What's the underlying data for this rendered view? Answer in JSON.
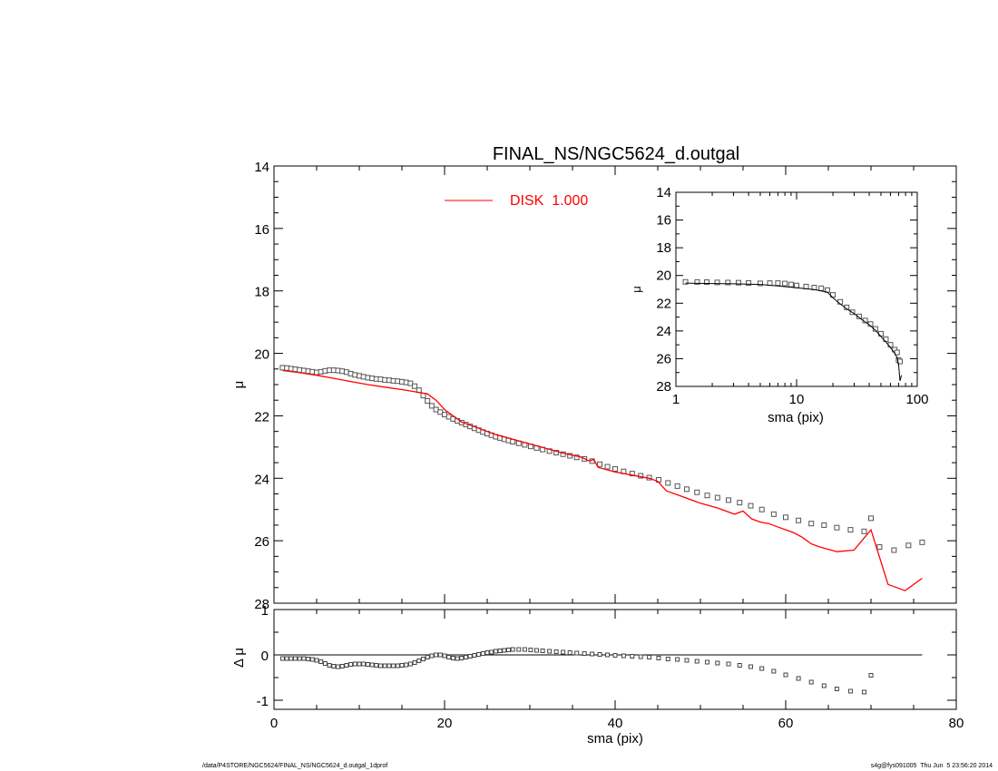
{
  "figure": {
    "title": "FINAL_NS/NGC5624_d.outgal",
    "footer_left": "/data/P4STORE/NGC5624/FINAL_NS/NGC5624_d.outgal_1dprof",
    "footer_right": "s4g@fys091005  Thu Jun  5 23:56:20 2014"
  },
  "chart_data": [
    {
      "panel": "main",
      "type": "scatter",
      "title": "FINAL_NS/NGC5624_d.outgal",
      "xlabel": "",
      "ylabel": "μ",
      "xlim": [
        0,
        80
      ],
      "ylim": [
        28,
        14
      ],
      "y_inverted": true,
      "xticks": [
        0,
        20,
        40,
        60,
        80
      ],
      "yticks": [
        14,
        16,
        18,
        20,
        22,
        24,
        26,
        28
      ],
      "legend": {
        "placement": "top-center",
        "entries": [
          {
            "label": "DISK  1.000",
            "color": "#ff0000"
          }
        ]
      },
      "series": [
        {
          "name": "",
          "kind": "points",
          "marker": "open-square",
          "color": "#000000",
          "x": [
            1.0,
            1.5,
            2.0,
            2.5,
            3.0,
            3.5,
            4.0,
            4.5,
            5.0,
            5.5,
            6.0,
            6.5,
            7.0,
            7.5,
            8.0,
            8.5,
            9.0,
            9.5,
            10.0,
            10.5,
            11.0,
            11.5,
            12.0,
            12.5,
            13.0,
            13.5,
            14.0,
            14.5,
            15.0,
            15.5,
            16.0,
            16.5,
            17.0,
            17.5,
            18.0,
            18.5,
            19.0,
            19.5,
            20.0,
            20.5,
            21.0,
            21.5,
            22.0,
            22.5,
            23.0,
            23.5,
            24.0,
            24.5,
            25.0,
            25.5,
            26.0,
            26.5,
            27.0,
            27.5,
            28.0,
            28.7,
            29.4,
            30.1,
            30.8,
            31.5,
            32.3,
            33.1,
            33.9,
            34.7,
            35.5,
            36.4,
            37.3,
            38.2,
            39.1,
            40.0,
            41.0,
            42.0,
            43.0,
            44.0,
            45.1,
            46.2,
            47.3,
            48.4,
            49.6,
            50.8,
            52.0,
            53.3,
            54.6,
            55.9,
            57.2,
            58.6,
            60.0,
            61.5,
            63.0,
            64.5,
            66.0,
            67.6,
            69.2,
            70.0,
            71.0,
            72.7,
            74.4,
            76.0
          ],
          "y": [
            20.46,
            20.47,
            20.49,
            20.51,
            20.53,
            20.55,
            20.57,
            20.59,
            20.61,
            20.59,
            20.56,
            20.54,
            20.54,
            20.55,
            20.57,
            20.6,
            20.65,
            20.69,
            20.72,
            20.75,
            20.78,
            20.8,
            20.82,
            20.83,
            20.85,
            20.86,
            20.88,
            20.89,
            20.91,
            20.93,
            20.96,
            21.05,
            21.18,
            21.35,
            21.52,
            21.68,
            21.8,
            21.88,
            21.96,
            22.03,
            22.1,
            22.16,
            22.22,
            22.28,
            22.34,
            22.4,
            22.46,
            22.52,
            22.57,
            22.62,
            22.67,
            22.71,
            22.75,
            22.79,
            22.83,
            22.88,
            22.93,
            22.98,
            23.03,
            23.08,
            23.13,
            23.18,
            23.23,
            23.28,
            23.33,
            23.38,
            23.45,
            23.55,
            23.63,
            23.7,
            23.78,
            23.85,
            23.92,
            23.98,
            24.05,
            24.15,
            24.25,
            24.35,
            24.45,
            24.55,
            24.62,
            24.7,
            24.78,
            24.88,
            25.0,
            25.15,
            25.25,
            25.35,
            25.45,
            25.5,
            25.58,
            25.65,
            25.7,
            25.28,
            26.2,
            26.3,
            26.15,
            26.05
          ]
        },
        {
          "name": "DISK  1.000",
          "kind": "line",
          "color": "#ff0000",
          "x": [
            1.0,
            3.0,
            5.0,
            7.0,
            9.0,
            11.0,
            13.0,
            15.0,
            17.0,
            18.0,
            19.0,
            20.0,
            21.0,
            22.0,
            24.0,
            26.0,
            28.0,
            30.0,
            32.0,
            34.0,
            36.0,
            37.0,
            37.5,
            38.0,
            40.0,
            42.0,
            44.0,
            45.0,
            46.0,
            48.0,
            50.0,
            52.0,
            54.0,
            55.0,
            56.0,
            57.0,
            58.0,
            59.0,
            60.0,
            61.0,
            62.0,
            63.0,
            64.0,
            66.0,
            68.0,
            70.0,
            72.0,
            74.0,
            76.0
          ],
          "y": [
            20.55,
            20.62,
            20.7,
            20.8,
            20.9,
            21.0,
            21.08,
            21.16,
            21.25,
            21.3,
            21.5,
            21.8,
            22.0,
            22.2,
            22.4,
            22.6,
            22.75,
            22.9,
            23.05,
            23.2,
            23.32,
            23.45,
            23.4,
            23.65,
            23.8,
            23.9,
            24.0,
            24.1,
            24.4,
            24.6,
            24.8,
            24.95,
            25.15,
            25.05,
            25.3,
            25.4,
            25.45,
            25.55,
            25.65,
            25.75,
            25.9,
            26.1,
            26.2,
            26.35,
            26.3,
            25.65,
            27.4,
            27.6,
            27.2
          ]
        }
      ]
    },
    {
      "panel": "residual",
      "type": "scatter",
      "xlabel": "sma (pix)",
      "ylabel": "Δ μ",
      "xlim": [
        0,
        80
      ],
      "ylim": [
        -1.2,
        1.0
      ],
      "xticks": [
        0,
        20,
        40,
        60,
        80
      ],
      "yticks": [
        -1,
        0,
        1
      ],
      "reference_line": {
        "y": 0,
        "x_range": [
          0,
          76
        ]
      },
      "series": [
        {
          "name": "",
          "kind": "points",
          "marker": "open-square",
          "color": "#000000",
          "x": [
            1.0,
            1.5,
            2.0,
            2.5,
            3.0,
            3.5,
            4.0,
            4.5,
            5.0,
            5.5,
            6.0,
            6.5,
            7.0,
            7.5,
            8.0,
            8.5,
            9.0,
            9.5,
            10.0,
            10.5,
            11.0,
            11.5,
            12.0,
            12.5,
            13.0,
            13.5,
            14.0,
            14.5,
            15.0,
            15.5,
            16.0,
            16.5,
            17.0,
            17.5,
            18.0,
            18.5,
            19.0,
            19.5,
            20.0,
            20.5,
            21.0,
            21.5,
            22.0,
            22.5,
            23.0,
            23.5,
            24.0,
            24.5,
            25.0,
            25.5,
            26.0,
            26.5,
            27.0,
            27.5,
            28.0,
            28.7,
            29.4,
            30.1,
            30.8,
            31.5,
            32.3,
            33.1,
            33.9,
            34.7,
            35.5,
            36.4,
            37.3,
            38.2,
            39.1,
            40.0,
            41.0,
            42.0,
            43.0,
            44.0,
            45.1,
            46.2,
            47.3,
            48.4,
            49.6,
            50.8,
            52.0,
            53.3,
            54.6,
            55.9,
            57.2,
            58.6,
            60.0,
            61.5,
            63.0,
            64.5,
            66.0,
            67.6,
            69.2,
            70.0
          ],
          "y": [
            -0.08,
            -0.08,
            -0.08,
            -0.08,
            -0.08,
            -0.08,
            -0.09,
            -0.1,
            -0.12,
            -0.15,
            -0.19,
            -0.23,
            -0.25,
            -0.26,
            -0.25,
            -0.23,
            -0.21,
            -0.2,
            -0.2,
            -0.2,
            -0.21,
            -0.22,
            -0.23,
            -0.24,
            -0.24,
            -0.24,
            -0.24,
            -0.24,
            -0.23,
            -0.22,
            -0.2,
            -0.17,
            -0.13,
            -0.09,
            -0.05,
            -0.02,
            0.0,
            0.0,
            -0.02,
            -0.05,
            -0.07,
            -0.08,
            -0.07,
            -0.05,
            -0.03,
            -0.01,
            0.01,
            0.03,
            0.05,
            0.06,
            0.08,
            0.09,
            0.1,
            0.11,
            0.12,
            0.12,
            0.12,
            0.11,
            0.1,
            0.09,
            0.08,
            0.07,
            0.06,
            0.05,
            0.04,
            0.03,
            0.02,
            0.01,
            0.0,
            -0.01,
            -0.02,
            -0.03,
            -0.04,
            -0.05,
            -0.07,
            -0.09,
            -0.1,
            -0.12,
            -0.14,
            -0.16,
            -0.18,
            -0.2,
            -0.23,
            -0.26,
            -0.3,
            -0.36,
            -0.44,
            -0.52,
            -0.6,
            -0.68,
            -0.75,
            -0.8,
            -0.82,
            -0.45
          ]
        }
      ]
    },
    {
      "panel": "inset",
      "type": "scatter",
      "xlabel": "sma (pix)",
      "ylabel": "μ",
      "x_scale": "log",
      "xlim": [
        1,
        100
      ],
      "ylim": [
        28,
        14
      ],
      "y_inverted": true,
      "xticks": [
        1,
        10,
        100
      ],
      "yticks": [
        14,
        16,
        18,
        20,
        22,
        24,
        26,
        28
      ],
      "series": [
        {
          "name": "",
          "kind": "points",
          "marker": "open-square",
          "color": "#000000",
          "x": [
            1.2,
            1.5,
            1.8,
            2.2,
            2.7,
            3.3,
            4.0,
            5.0,
            6.0,
            7.0,
            8.0,
            9.0,
            10.0,
            12.0,
            14.0,
            16.0,
            18.0,
            20.0,
            23.0,
            26.0,
            29.0,
            33.0,
            37.0,
            41.0,
            45.0,
            50.0,
            55.0,
            60.0,
            65.0,
            68.0,
            70.0,
            72.0
          ],
          "y": [
            20.46,
            20.47,
            20.48,
            20.5,
            20.51,
            20.52,
            20.54,
            20.57,
            20.55,
            20.55,
            20.58,
            20.65,
            20.72,
            20.8,
            20.87,
            20.92,
            21.05,
            21.4,
            21.9,
            22.3,
            22.65,
            22.95,
            23.25,
            23.5,
            23.85,
            24.2,
            24.6,
            25.0,
            25.35,
            25.55,
            26.1,
            26.2
          ]
        },
        {
          "name": "",
          "kind": "line",
          "color": "#000000",
          "x": [
            1.2,
            2.0,
            3.0,
            5.0,
            7.0,
            10.0,
            14.0,
            18.0,
            20.0,
            23.0,
            26.0,
            30.0,
            35.0,
            40.0,
            45.0,
            50.0,
            55.0,
            60.0,
            65.0,
            68.0,
            70.0,
            72.0,
            74.0
          ],
          "y": [
            20.55,
            20.58,
            20.6,
            20.65,
            20.75,
            20.88,
            21.02,
            21.2,
            21.6,
            22.05,
            22.4,
            22.75,
            23.2,
            23.55,
            23.95,
            24.4,
            24.8,
            25.2,
            25.6,
            25.9,
            26.4,
            27.6,
            27.2
          ]
        }
      ]
    }
  ]
}
